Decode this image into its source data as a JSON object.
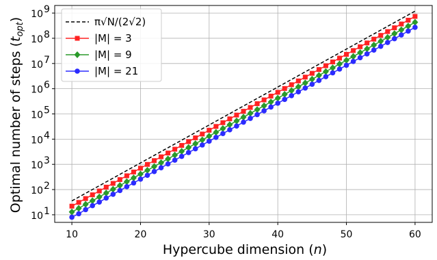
{
  "chart_data": {
    "type": "line",
    "xlabel": "Hypercube dimension (n)",
    "ylabel": "Optimal number of steps (t_opt)",
    "x_ticks": [
      "10",
      "20",
      "30",
      "40",
      "50",
      "60"
    ],
    "y_ticks": [
      {
        "mantissa": "10",
        "exponent": "1"
      },
      {
        "mantissa": "10",
        "exponent": "2"
      },
      {
        "mantissa": "10",
        "exponent": "3"
      },
      {
        "mantissa": "10",
        "exponent": "4"
      },
      {
        "mantissa": "10",
        "exponent": "5"
      },
      {
        "mantissa": "10",
        "exponent": "6"
      },
      {
        "mantissa": "10",
        "exponent": "7"
      },
      {
        "mantissa": "10",
        "exponent": "8"
      },
      {
        "mantissa": "10",
        "exponent": "9"
      }
    ],
    "xlim": [
      7.5,
      62.5
    ],
    "ylim": [
      5,
      2000000000
    ],
    "yscale": "log",
    "grid": true,
    "legend_position": "top-left",
    "x": [
      10,
      11,
      12,
      13,
      14,
      15,
      16,
      17,
      18,
      19,
      20,
      21,
      22,
      23,
      24,
      25,
      26,
      27,
      28,
      29,
      30,
      31,
      32,
      33,
      34,
      35,
      36,
      37,
      38,
      39,
      40,
      41,
      42,
      43,
      44,
      45,
      46,
      47,
      48,
      49,
      50,
      51,
      52,
      53,
      54,
      55,
      56,
      57,
      58,
      59,
      60
    ],
    "series": [
      {
        "name": "π√N/(2√2)",
        "style": "dashed",
        "color": "#000000",
        "marker": "none",
        "values": [
          35.5,
          50.3,
          71.1,
          100.5,
          142,
          201,
          284,
          402,
          569,
          804,
          1137,
          1608,
          2275,
          3217,
          4550,
          6434,
          9099,
          12868,
          18198,
          25736,
          36396,
          51472,
          72792,
          102944,
          145584,
          205886,
          291167,
          411773,
          582334,
          823545,
          1164668,
          1647091,
          2329337,
          3294182,
          4658673,
          6588364,
          9317347,
          13176727,
          18634693,
          26353455,
          37269387,
          52706909,
          74538773,
          105413818,
          149077547,
          210827636,
          298155094,
          421655273,
          596310189,
          843310545,
          1192620378
        ]
      },
      {
        "name": "|M| = 3",
        "style": "solid",
        "color": "#ff2222",
        "marker": "square",
        "values": [
          22,
          31,
          44,
          62,
          88,
          125,
          176,
          249,
          352,
          498,
          704,
          996,
          1408,
          1992,
          2817,
          3983,
          5633,
          7967,
          11267,
          15934,
          22534,
          31868,
          45068,
          63735,
          90135,
          127471,
          180270,
          254941,
          360540,
          509883,
          721080,
          1019766,
          1442161,
          2039532,
          2884322,
          4079065,
          5768644,
          8158130,
          11537288,
          16316261,
          23074575,
          32632522,
          46149150,
          65265044,
          92298299,
          130530089,
          184596598,
          261060178,
          369193196,
          522120356,
          738386392
        ]
      },
      {
        "name": "|M| = 9",
        "style": "solid",
        "color": "#2a9a2a",
        "marker": "diamond",
        "values": [
          13,
          18,
          26,
          36,
          51,
          73,
          103,
          145,
          206,
          291,
          411,
          582,
          823,
          1164,
          1646,
          2328,
          3292,
          4655,
          6584,
          9311,
          13167,
          18621,
          26334,
          37242,
          52668,
          74485,
          105337,
          148969,
          210673,
          297938,
          421347,
          595876,
          842694,
          1191751,
          1685388,
          2383502,
          3370775,
          4767005,
          6741551,
          9534009,
          13483101,
          19068018,
          26966202,
          38136035,
          53932404,
          76272070,
          107864808,
          152544141,
          215729615,
          305088282,
          431459230
        ]
      },
      {
        "name": "|M| = 21",
        "style": "solid",
        "color": "#2b2bff",
        "marker": "circle",
        "values": [
          8,
          11,
          16,
          23,
          32,
          46,
          65,
          92,
          130,
          183,
          259,
          367,
          519,
          733,
          1037,
          1467,
          2074,
          2934,
          4149,
          5868,
          8298,
          11736,
          16597,
          23471,
          33194,
          46943,
          66388,
          93885,
          132775,
          187770,
          265550,
          375541,
          531101,
          751081,
          1062202,
          1502162,
          2124403,
          3004324,
          4248807,
          6008649,
          8497613,
          12017298,
          16995226,
          24034596,
          33990452,
          48069192,
          67980904,
          96138384,
          135961808,
          192276768,
          271923616
        ]
      }
    ]
  }
}
